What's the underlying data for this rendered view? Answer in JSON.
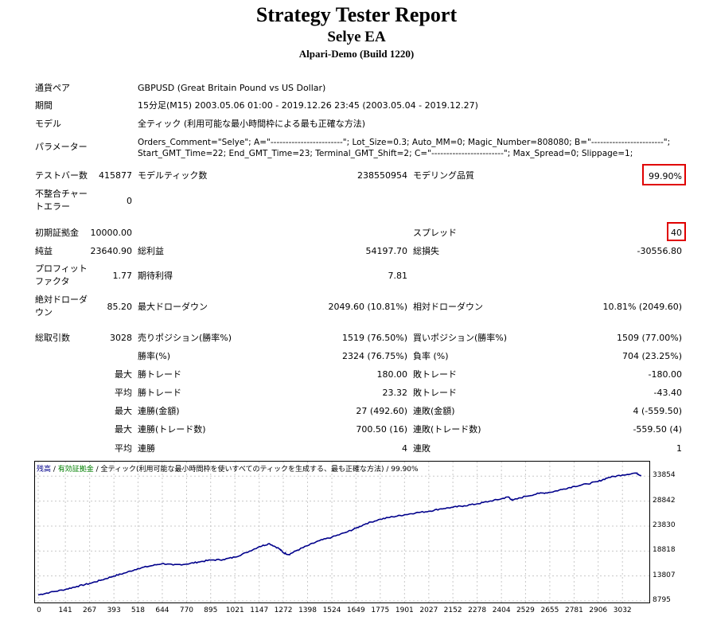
{
  "header": {
    "title": "Strategy Tester Report",
    "ea_name": "Selye EA",
    "broker": "Alpari-Demo (Build 1220)"
  },
  "info": {
    "symbol_label": "通貨ペア",
    "symbol_value": "GBPUSD (Great Britain Pound vs US Dollar)",
    "period_label": "期間",
    "period_value": "15分足(M15) 2003.05.06 01:00 - 2019.12.26 23:45 (2003.05.04 - 2019.12.27)",
    "model_label": "モデル",
    "model_value": "全ティック (利用可能な最小時間枠による最も正確な方法)",
    "params_label": "パラメーター",
    "params_line1": "Orders_Comment=\"Selye\"; A=\"------------------------\"; Lot_Size=0.3; Auto_MM=0; Magic_Number=808080; B=\"------------------------\";",
    "params_line2": "Start_GMT_Time=22; End_GMT_Time=23; Terminal_GMT_Shift=2; C=\"------------------------\"; Max_Spread=0; Slippage=1;"
  },
  "stats": {
    "bars_label": "テストバー数",
    "bars_value": "415877",
    "ticks_label": "モデルティック数",
    "ticks_value": "238550954",
    "quality_label": "モデリング品質",
    "quality_value": "99.90%",
    "mismatch_label_1": "不整合チャー",
    "mismatch_label_2": "トエラー",
    "mismatch_value": "0",
    "deposit_label": "初期証拠金",
    "deposit_value": "10000.00",
    "spread_label": "スプレッド",
    "spread_value": "40",
    "net_label": "純益",
    "net_value": "23640.90",
    "gross_profit_label": "総利益",
    "gross_profit_value": "54197.70",
    "gross_loss_label": "総損失",
    "gross_loss_value": "-30556.80",
    "pf_label_1": "プロフィット",
    "pf_label_2": "ファクタ",
    "pf_value": "1.77",
    "expected_label": "期待利得",
    "expected_value": "7.81",
    "abs_dd_label_1": "絶対ドローダ",
    "abs_dd_label_2": "ウン",
    "abs_dd_value": "85.20",
    "max_dd_label": "最大ドローダウン",
    "max_dd_value": "2049.60 (10.81%)",
    "rel_dd_label": "相対ドローダウン",
    "rel_dd_value": "10.81% (2049.60)",
    "trades_label": "総取引数",
    "trades_value": "3028",
    "short_label": "売りポジション(勝率%)",
    "short_value": "1519 (76.50%)",
    "long_label": "買いポジション(勝率%)",
    "long_value": "1509 (77.00%)",
    "win_label": "勝率(%)",
    "win_value": "2324 (76.75%)",
    "loss_label": "負率 (%)",
    "loss_value": "704 (23.25%)",
    "max_word": "最大",
    "avg_word": "平均",
    "max_win_label": "勝トレード",
    "max_win_value": "180.00",
    "max_loss_label": "敗トレード",
    "max_loss_value": "-180.00",
    "avg_win_label": "勝トレード",
    "avg_win_value": "23.32",
    "avg_loss_label": "敗トレード",
    "avg_loss_value": "-43.40",
    "cons_wins_money_label": "連勝(金額)",
    "cons_wins_money_value": "27 (492.60)",
    "cons_losses_money_label": "連敗(金額)",
    "cons_losses_money_value": "4 (-559.50)",
    "cons_profit_label": "連勝(トレード数)",
    "cons_profit_value": "700.50 (16)",
    "cons_loss_label": "連敗(トレード数)",
    "cons_loss_value": "-559.50 (4)",
    "avg_cons_wins_label": "連勝",
    "avg_cons_wins_value": "4",
    "avg_cons_losses_label": "連敗",
    "avg_cons_losses_value": "1"
  },
  "chart_legend": {
    "balance": "残高",
    "sep1": " / ",
    "equity": "有効証拠金",
    "rest": " / 全ティック(利用可能な最小時間枠を使いすべてのティックを生成する、最も正確な方法) / 99.90%"
  },
  "colors": {
    "balance_line": "#00008b",
    "equity_label": "#008000",
    "highlight_box": "#e00000"
  },
  "chart_data": {
    "type": "line",
    "x_ticks": [
      "0",
      "141",
      "267",
      "393",
      "518",
      "644",
      "770",
      "895",
      "1021",
      "1147",
      "1272",
      "1398",
      "1524",
      "1649",
      "1775",
      "1901",
      "2027",
      "2152",
      "2278",
      "2404",
      "2529",
      "2655",
      "2781",
      "2906",
      "3032"
    ],
    "y_ticks": [
      "33854",
      "28842",
      "23830",
      "18818",
      "13807",
      "8795"
    ],
    "xlim": [
      0,
      3155
    ],
    "ylim": [
      8795,
      35500
    ],
    "series": [
      {
        "name": "残高",
        "x": [
          0,
          60,
          141,
          200,
          267,
          330,
          393,
          450,
          518,
          580,
          644,
          700,
          770,
          830,
          895,
          960,
          1021,
          1080,
          1147,
          1200,
          1250,
          1272,
          1300,
          1340,
          1398,
          1460,
          1524,
          1600,
          1649,
          1700,
          1775,
          1840,
          1901,
          1960,
          2027,
          2090,
          2152,
          2210,
          2278,
          2340,
          2404,
          2440,
          2460,
          2529,
          2600,
          2655,
          2720,
          2781,
          2850,
          2906,
          2960,
          3032,
          3100,
          3130
        ],
        "y": [
          10000,
          10500,
          11100,
          11700,
          12300,
          13000,
          13800,
          14400,
          15300,
          15800,
          16300,
          16000,
          16200,
          16600,
          17000,
          17100,
          17600,
          18500,
          19700,
          20300,
          19300,
          18500,
          18100,
          18900,
          19900,
          20900,
          21600,
          22600,
          23400,
          24300,
          25200,
          25700,
          26100,
          26500,
          26800,
          27300,
          27600,
          27900,
          28300,
          28800,
          29300,
          29700,
          29000,
          29800,
          30400,
          30600,
          31200,
          31800,
          32300,
          32800,
          33600,
          34100,
          34500,
          34000
        ]
      }
    ]
  }
}
